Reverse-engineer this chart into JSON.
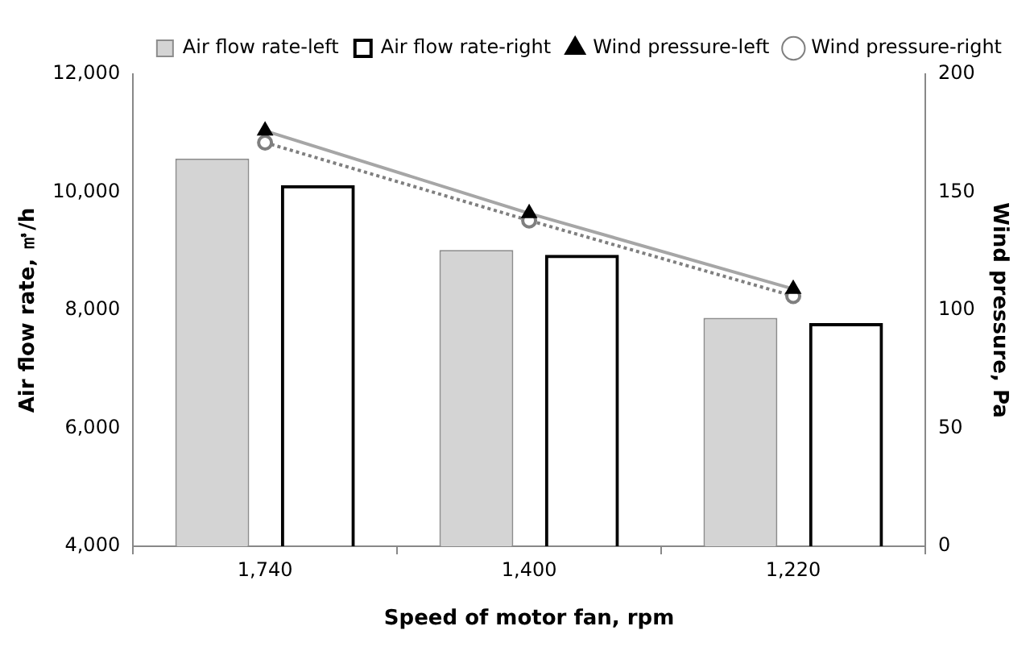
{
  "chart_data": {
    "type": "bar",
    "xlabel": "Speed of motor fan, rpm",
    "ylabel": "Air flow rate, ㎥/h",
    "y2label": "Wind pressure, Pa",
    "categories": [
      "1,740",
      "1,400",
      "1,220"
    ],
    "series": [
      {
        "name": "Air flow rate-left",
        "color": "#d4d4d4",
        "values": [
          10570,
          9020,
          7870
        ]
      },
      {
        "name": "Air flow rate-right",
        "color": "#000000",
        "values": [
          10120,
          8940,
          7780
        ]
      },
      {
        "name": "Wind pressure-left",
        "type": "line",
        "axis": "y2",
        "color": "#a6a6a6",
        "marker": "triangle",
        "line_style": "solid",
        "values": [
          176,
          141,
          109
        ]
      },
      {
        "name": "Wind pressure-right",
        "type": "line",
        "axis": "y2",
        "color": "#7f7f7f",
        "marker": "circle",
        "line_style": "dotted",
        "values": [
          171,
          138,
          106
        ]
      }
    ],
    "ylim": [
      4000,
      12000
    ],
    "yticks": [
      {
        "value": 4000,
        "label": "4,000"
      },
      {
        "value": 6000,
        "label": "6,000"
      },
      {
        "value": 8000,
        "label": "8,000"
      },
      {
        "value": 10000,
        "label": "10,000"
      },
      {
        "value": 12000,
        "label": "12,000"
      }
    ],
    "y2lim": [
      0,
      200
    ],
    "y2ticks": [
      0,
      50,
      100,
      150,
      200
    ],
    "grid": false,
    "legend": "top right"
  }
}
